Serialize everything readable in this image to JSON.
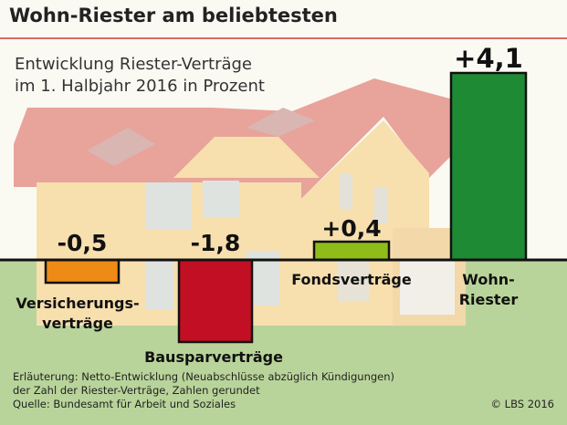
{
  "title": "Wohn-Riester am beliebtesten",
  "subtitle_line1": "Entwicklung Riester-Verträge",
  "subtitle_line2": "im 1. Halbjahr 2016 in Prozent",
  "footnote_line1": "Erläuterung: Netto-Entwicklung (Neuabschlüsse abzüglich Kündigungen)",
  "footnote_line2": "der Zahl der Riester-Verträge, Zahlen gerundet",
  "footnote_line3": "Quelle: Bundesamt für Arbeit und Soziales",
  "copyright": "© LBS 2016",
  "chart_data": {
    "type": "bar",
    "categories": [
      [
        "Versicherungs-",
        "verträge"
      ],
      [
        "Bausparverträge"
      ],
      [
        "Fondsverträge"
      ],
      [
        "Wohn-",
        "Riester"
      ]
    ],
    "values": [
      -0.5,
      -1.8,
      0.4,
      4.1
    ],
    "value_labels": [
      "-0,5",
      "-1,8",
      "+0,4",
      "+4,1"
    ],
    "colors": [
      "#ee8a16",
      "#c20f24",
      "#8fbc19",
      "#1f8a34"
    ],
    "ylim": [
      -2.1,
      4.1
    ],
    "grid": false,
    "legend": "none"
  },
  "colors": {
    "sky": "#fbfaf2",
    "ground": "#b9d49a",
    "house_wall": "#f7dfae",
    "roof": "#e8a39b",
    "title_rule": "#d63a35",
    "axis": "#111111"
  }
}
